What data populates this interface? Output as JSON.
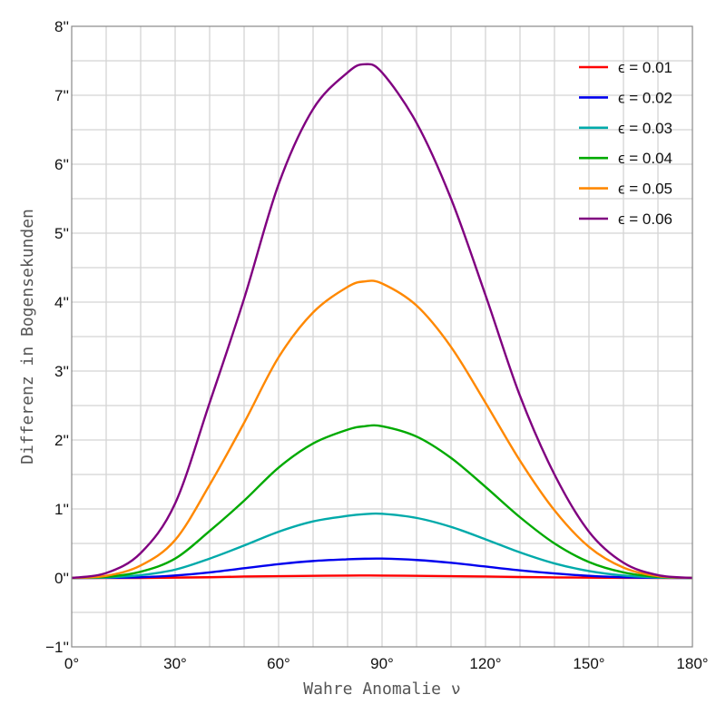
{
  "chart_data": {
    "type": "line",
    "title": "",
    "xlabel": "Wahre Anomalie ν",
    "ylabel": "Differenz in Bogensekunden",
    "xlim": [
      0,
      180
    ],
    "ylim": [
      -1,
      8
    ],
    "grid": true,
    "legend_position": "top-right",
    "x_ticks": [
      0,
      30,
      60,
      90,
      120,
      150,
      180
    ],
    "x_tick_labels": [
      "0°",
      "30°",
      "60°",
      "90°",
      "120°",
      "150°",
      "180°"
    ],
    "y_ticks": [
      -1,
      0,
      1,
      2,
      3,
      4,
      5,
      6,
      7,
      8
    ],
    "y_tick_labels": [
      "−1''",
      "0''",
      "1''",
      "2''",
      "3''",
      "4''",
      "5''",
      "6''",
      "7''",
      "8''"
    ],
    "x": [
      0,
      10,
      20,
      30,
      40,
      50,
      60,
      70,
      80,
      85,
      90,
      100,
      110,
      120,
      130,
      140,
      150,
      160,
      170,
      180
    ],
    "series": [
      {
        "name": "ϵ = 0.01",
        "color": "#ff0000",
        "values": [
          0,
          0,
          0,
          0.005,
          0.01,
          0.02,
          0.025,
          0.03,
          0.034,
          0.035,
          0.034,
          0.03,
          0.026,
          0.02,
          0.013,
          0.008,
          0.004,
          0.001,
          0,
          0
        ]
      },
      {
        "name": "ϵ = 0.02",
        "color": "#0000ee",
        "values": [
          0,
          0.002,
          0.01,
          0.035,
          0.08,
          0.14,
          0.2,
          0.245,
          0.27,
          0.278,
          0.28,
          0.26,
          0.22,
          0.165,
          0.11,
          0.065,
          0.03,
          0.01,
          0.002,
          0
        ]
      },
      {
        "name": "ϵ = 0.03",
        "color": "#00aaaa",
        "values": [
          0,
          0.006,
          0.04,
          0.12,
          0.28,
          0.47,
          0.67,
          0.82,
          0.9,
          0.925,
          0.93,
          0.87,
          0.74,
          0.56,
          0.37,
          0.21,
          0.1,
          0.035,
          0.006,
          0
        ]
      },
      {
        "name": "ϵ = 0.04",
        "color": "#00aa00",
        "values": [
          0,
          0.015,
          0.09,
          0.28,
          0.68,
          1.12,
          1.6,
          1.95,
          2.15,
          2.2,
          2.2,
          2.05,
          1.74,
          1.32,
          0.88,
          0.5,
          0.23,
          0.08,
          0.015,
          0
        ]
      },
      {
        "name": "ϵ = 0.05",
        "color": "#ff8800",
        "values": [
          0,
          0.03,
          0.18,
          0.55,
          1.35,
          2.25,
          3.2,
          3.85,
          4.22,
          4.3,
          4.27,
          3.95,
          3.35,
          2.54,
          1.7,
          0.98,
          0.45,
          0.15,
          0.025,
          0
        ]
      },
      {
        "name": "ϵ = 0.06",
        "color": "#800080",
        "values": [
          0,
          0.07,
          0.36,
          1.08,
          2.54,
          4.05,
          5.71,
          6.8,
          7.33,
          7.45,
          7.33,
          6.6,
          5.5,
          4.1,
          2.64,
          1.5,
          0.67,
          0.22,
          0.04,
          0
        ]
      }
    ]
  }
}
